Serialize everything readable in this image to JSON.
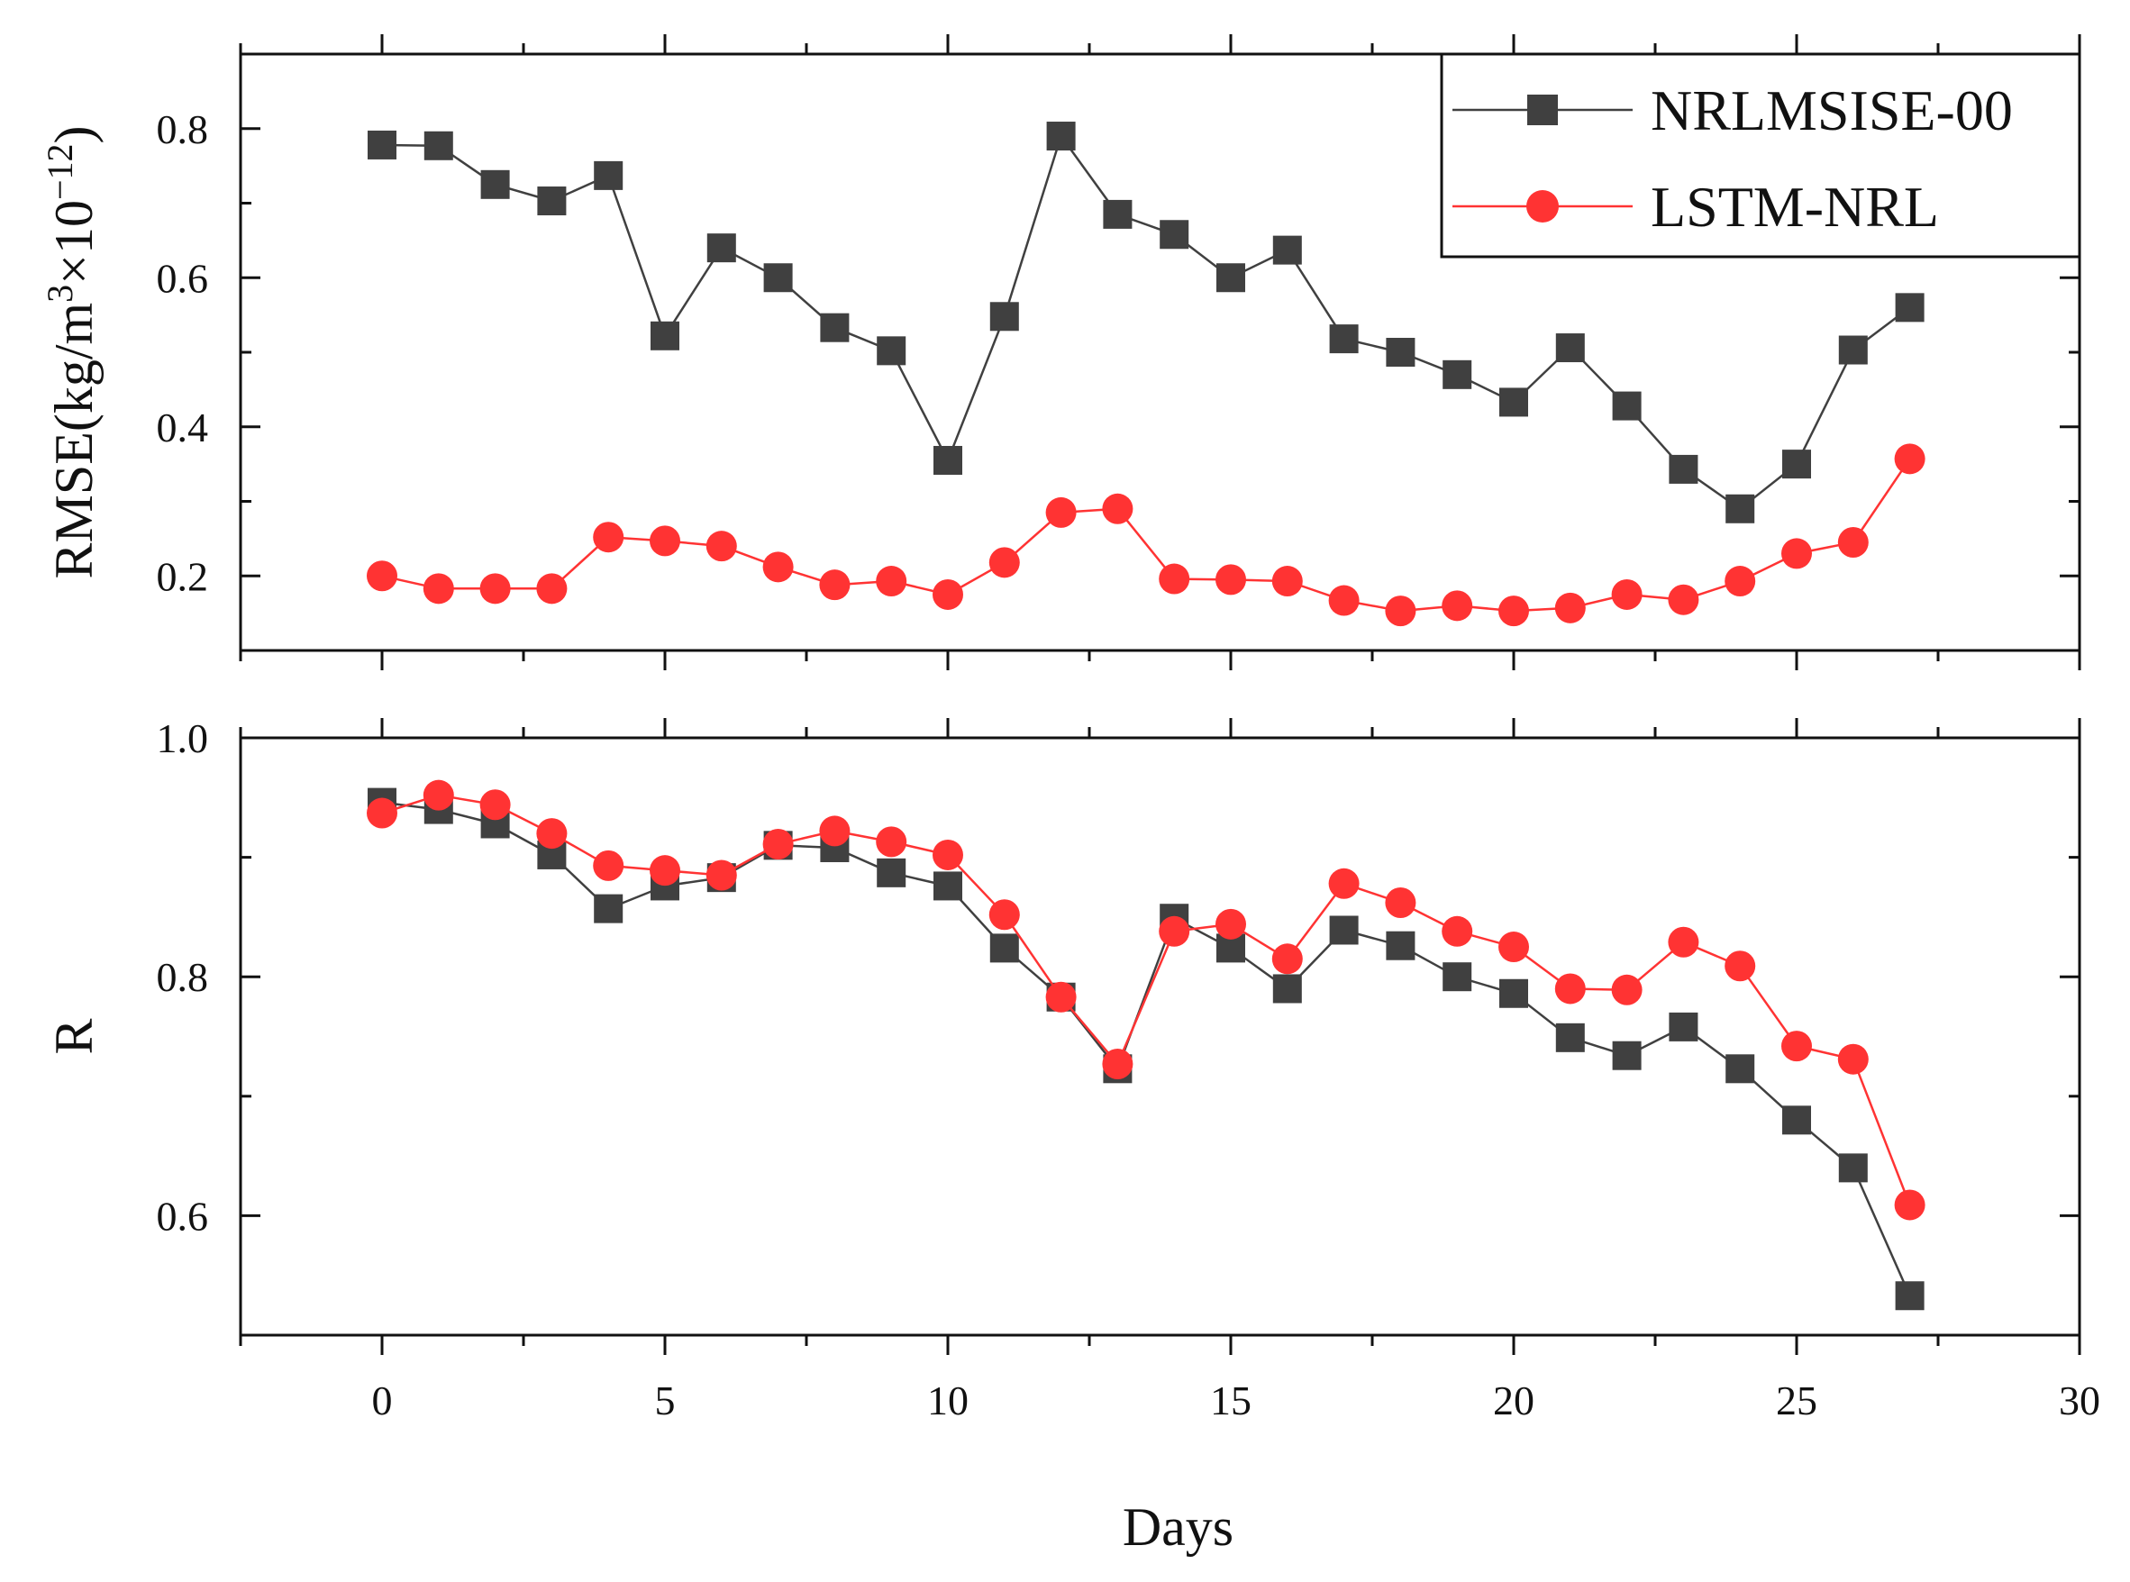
{
  "chart_data": [
    {
      "type": "line",
      "panel": "top",
      "ylabel": "RMSE(kg/m³×10⁻¹²)",
      "ylabel_parts": {
        "base": "RMSE(kg/m",
        "sup1": "3",
        "mid": "×10",
        "sup2": "−12",
        "end": ")"
      },
      "xlim": [
        -2.5,
        30
      ],
      "ylim": [
        0.1,
        0.9
      ],
      "yticks": [
        0.2,
        0.4,
        0.6,
        0.8
      ],
      "ytick_labels": [
        "0.2",
        "0.4",
        "0.6",
        "0.8"
      ],
      "x": [
        0,
        1,
        2,
        3,
        4,
        5,
        6,
        7,
        8,
        9,
        10,
        11,
        12,
        13,
        14,
        15,
        16,
        17,
        18,
        19,
        20,
        21,
        22,
        23,
        24,
        25,
        26,
        27
      ],
      "legend_position": "top-right",
      "grid": false,
      "series": [
        {
          "name": "NRLMSISE-00",
          "color": "#404040",
          "marker": "square",
          "values": [
            0.778,
            0.777,
            0.725,
            0.703,
            0.737,
            0.522,
            0.64,
            0.6,
            0.533,
            0.502,
            0.355,
            0.548,
            0.79,
            0.685,
            0.658,
            0.6,
            0.637,
            0.518,
            0.5,
            0.47,
            0.433,
            0.506,
            0.428,
            0.343,
            0.29,
            0.35,
            0.503,
            0.56
          ]
        },
        {
          "name": "LSTM-NRL",
          "color": "#ff3333",
          "marker": "circle",
          "values": [
            0.2,
            0.183,
            0.183,
            0.183,
            0.252,
            0.247,
            0.24,
            0.212,
            0.188,
            0.193,
            0.175,
            0.218,
            0.285,
            0.29,
            0.196,
            0.195,
            0.193,
            0.167,
            0.153,
            0.16,
            0.153,
            0.157,
            0.175,
            0.168,
            0.193,
            0.23,
            0.245,
            0.357
          ]
        }
      ]
    },
    {
      "type": "line",
      "panel": "bottom",
      "xlabel": "Days",
      "ylabel": "R",
      "xlim": [
        -2.5,
        30
      ],
      "ylim": [
        0.5,
        1.0
      ],
      "xticks": [
        0,
        5,
        10,
        15,
        20,
        25,
        30
      ],
      "xtick_labels": [
        "0",
        "5",
        "10",
        "15",
        "20",
        "25",
        "30"
      ],
      "yticks": [
        0.6,
        0.8,
        1.0
      ],
      "ytick_labels": [
        "0.6",
        "0.8",
        "1.0"
      ],
      "x": [
        0,
        1,
        2,
        3,
        4,
        5,
        6,
        7,
        8,
        9,
        10,
        11,
        12,
        13,
        14,
        15,
        16,
        17,
        18,
        19,
        20,
        21,
        22,
        23,
        24,
        25,
        26,
        27
      ],
      "grid": false,
      "series": [
        {
          "name": "NRLMSISE-00",
          "color": "#404040",
          "marker": "square",
          "values": [
            0.946,
            0.94,
            0.928,
            0.902,
            0.857,
            0.876,
            0.883,
            0.91,
            0.908,
            0.887,
            0.876,
            0.824,
            0.783,
            0.723,
            0.849,
            0.824,
            0.79,
            0.839,
            0.826,
            0.8,
            0.786,
            0.749,
            0.734,
            0.758,
            0.723,
            0.68,
            0.64,
            0.533
          ]
        },
        {
          "name": "LSTM-NRL",
          "color": "#ff3333",
          "marker": "circle",
          "values": [
            0.937,
            0.952,
            0.944,
            0.92,
            0.893,
            0.889,
            0.885,
            0.911,
            0.922,
            0.913,
            0.902,
            0.852,
            0.783,
            0.727,
            0.838,
            0.844,
            0.815,
            0.878,
            0.862,
            0.838,
            0.825,
            0.79,
            0.789,
            0.829,
            0.809,
            0.742,
            0.731,
            0.609
          ]
        }
      ]
    }
  ]
}
